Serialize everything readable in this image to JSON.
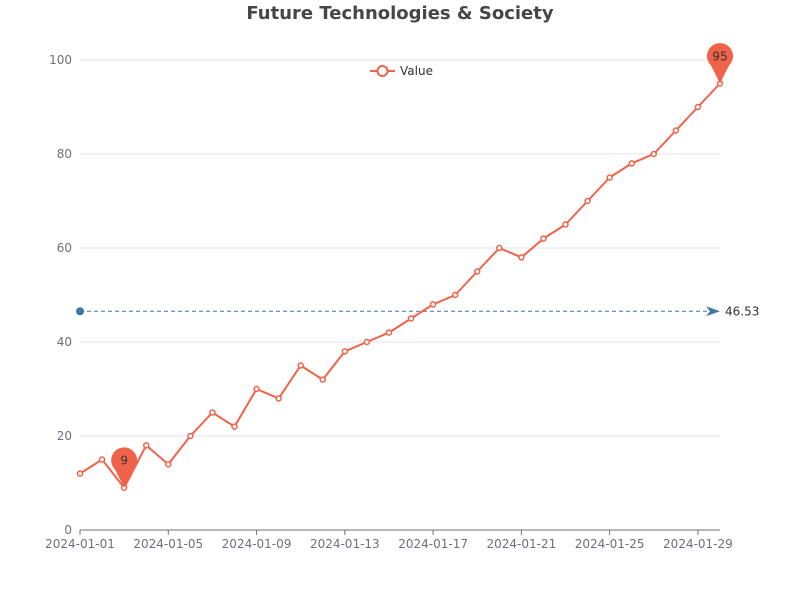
{
  "colors": {
    "series": "#f0634a",
    "markline": "#3a78a8",
    "grid": "#e0e6f1",
    "axis": "#6e7079",
    "title": "#464646"
  },
  "chart_data": {
    "type": "line",
    "title": "Future Technologies & Society",
    "xlabel": "",
    "ylabel": "",
    "ylim": [
      0,
      100
    ],
    "yticks": [
      0,
      20,
      40,
      60,
      80,
      100
    ],
    "xticks": [
      "2024-01-01",
      "2024-01-05",
      "2024-01-09",
      "2024-01-13",
      "2024-01-17",
      "2024-01-21",
      "2024-01-25",
      "2024-01-29"
    ],
    "grid": true,
    "legend": {
      "position": "top-center",
      "entries": [
        "Value"
      ]
    },
    "x": [
      "2024-01-01",
      "2024-01-02",
      "2024-01-03",
      "2024-01-04",
      "2024-01-05",
      "2024-01-06",
      "2024-01-07",
      "2024-01-08",
      "2024-01-09",
      "2024-01-10",
      "2024-01-11",
      "2024-01-12",
      "2024-01-13",
      "2024-01-14",
      "2024-01-15",
      "2024-01-16",
      "2024-01-17",
      "2024-01-18",
      "2024-01-19",
      "2024-01-20",
      "2024-01-21",
      "2024-01-22",
      "2024-01-23",
      "2024-01-24",
      "2024-01-25",
      "2024-01-26",
      "2024-01-27",
      "2024-01-28",
      "2024-01-29",
      "2024-01-30"
    ],
    "series": [
      {
        "name": "Value",
        "values": [
          12,
          15,
          9,
          18,
          14,
          20,
          25,
          22,
          30,
          28,
          35,
          32,
          38,
          40,
          42,
          45,
          48,
          50,
          55,
          60,
          58,
          62,
          65,
          70,
          75,
          78,
          80,
          85,
          90,
          95
        ]
      }
    ],
    "mark_points": [
      {
        "type": "min",
        "x": "2024-01-03",
        "value": 9,
        "label": "9"
      },
      {
        "type": "max",
        "x": "2024-01-30",
        "value": 95,
        "label": "95"
      }
    ],
    "mark_line": {
      "type": "average",
      "value": 46.53,
      "label": "46.53"
    }
  }
}
